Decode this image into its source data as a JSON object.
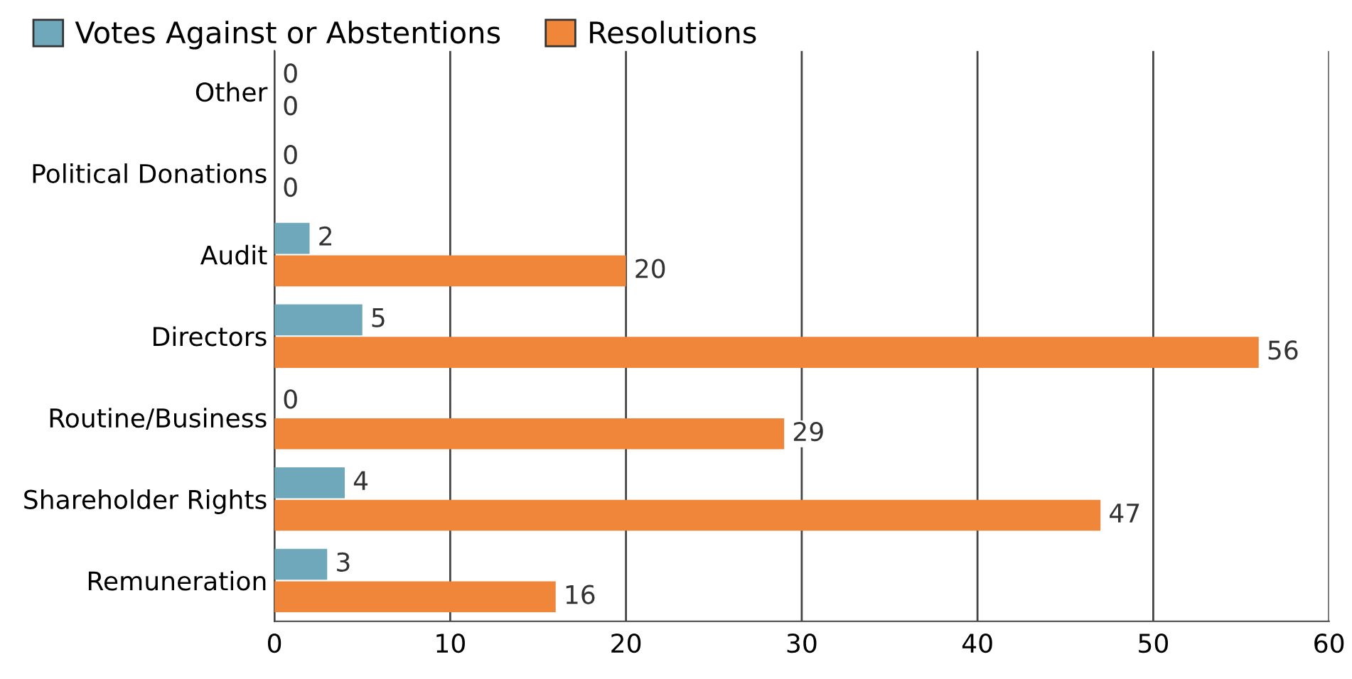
{
  "chart_data": {
    "type": "bar",
    "orientation": "horizontal",
    "categories": [
      "Other",
      "Political Donations",
      "Audit",
      "Directors",
      "Routine/Business",
      "Shareholder Rights",
      "Remuneration"
    ],
    "series": [
      {
        "name": "Votes Against or Abstentions",
        "color": "#6fa8bb",
        "values": [
          0,
          0,
          2,
          5,
          0,
          4,
          3
        ]
      },
      {
        "name": "Resolutions",
        "color": "#ef863a",
        "values": [
          0,
          0,
          20,
          56,
          29,
          47,
          16
        ]
      }
    ],
    "xlim": [
      0,
      60
    ],
    "xticks": [
      0,
      10,
      20,
      30,
      40,
      50,
      60
    ],
    "grid": "x",
    "legend": "top left",
    "data_labels": true
  }
}
